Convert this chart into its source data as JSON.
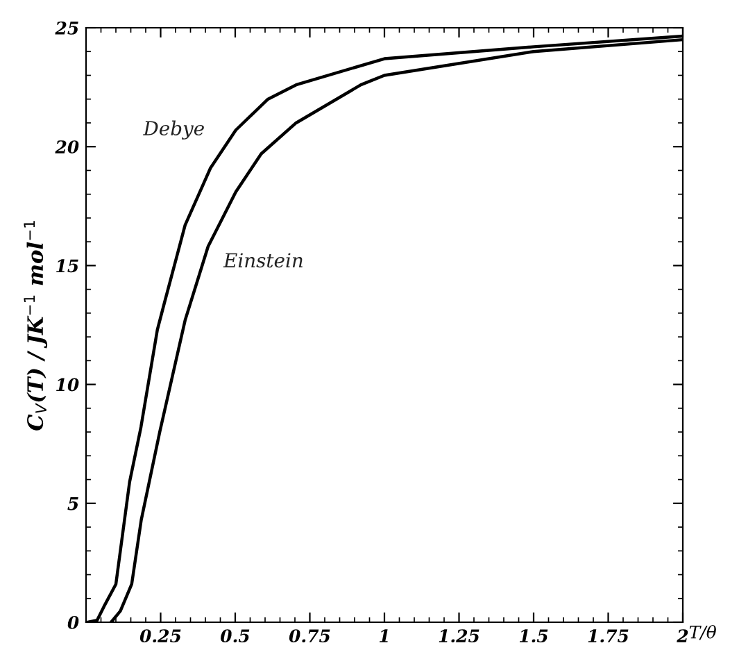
{
  "chart_data": {
    "type": "line",
    "xlabel": "T/θ",
    "ylabel": "C$_{V}$(T) / JK$^{−1}$ mol$^{−1}$",
    "series": [
      {
        "name": "Debye",
        "color": "#000000",
        "x": [
          0.006,
          0.037,
          0.06,
          0.1,
          0.146,
          0.184,
          0.239,
          0.262,
          0.332,
          0.417,
          0.502,
          0.61,
          0.704,
          1.0,
          1.5,
          2.0
        ],
        "values": [
          0,
          0.08,
          0.66,
          1.6,
          5.9,
          8.2,
          12.3,
          13.4,
          16.7,
          19.1,
          20.7,
          22.0,
          22.6,
          23.7,
          24.2,
          24.65
        ]
      },
      {
        "name": "Einstein",
        "color": "#000000",
        "x": [
          0.084,
          0.115,
          0.153,
          0.185,
          0.247,
          0.332,
          0.409,
          0.502,
          0.587,
          0.704,
          0.921,
          1.0,
          1.5,
          2.0
        ],
        "values": [
          0,
          0.47,
          1.6,
          4.3,
          8.0,
          12.7,
          15.8,
          18.1,
          19.7,
          21.0,
          22.6,
          23.0,
          24.0,
          24.5
        ]
      }
    ],
    "xlim": [
      0,
      2
    ],
    "ylim": [
      0,
      25
    ],
    "xticks": [
      0.25,
      0.5,
      0.75,
      1,
      1.25,
      1.5,
      1.75,
      2
    ],
    "yticks": [
      0,
      5,
      10,
      15,
      20,
      25
    ],
    "grid": false,
    "legend": false,
    "marker": "none",
    "line_style": "solid"
  }
}
